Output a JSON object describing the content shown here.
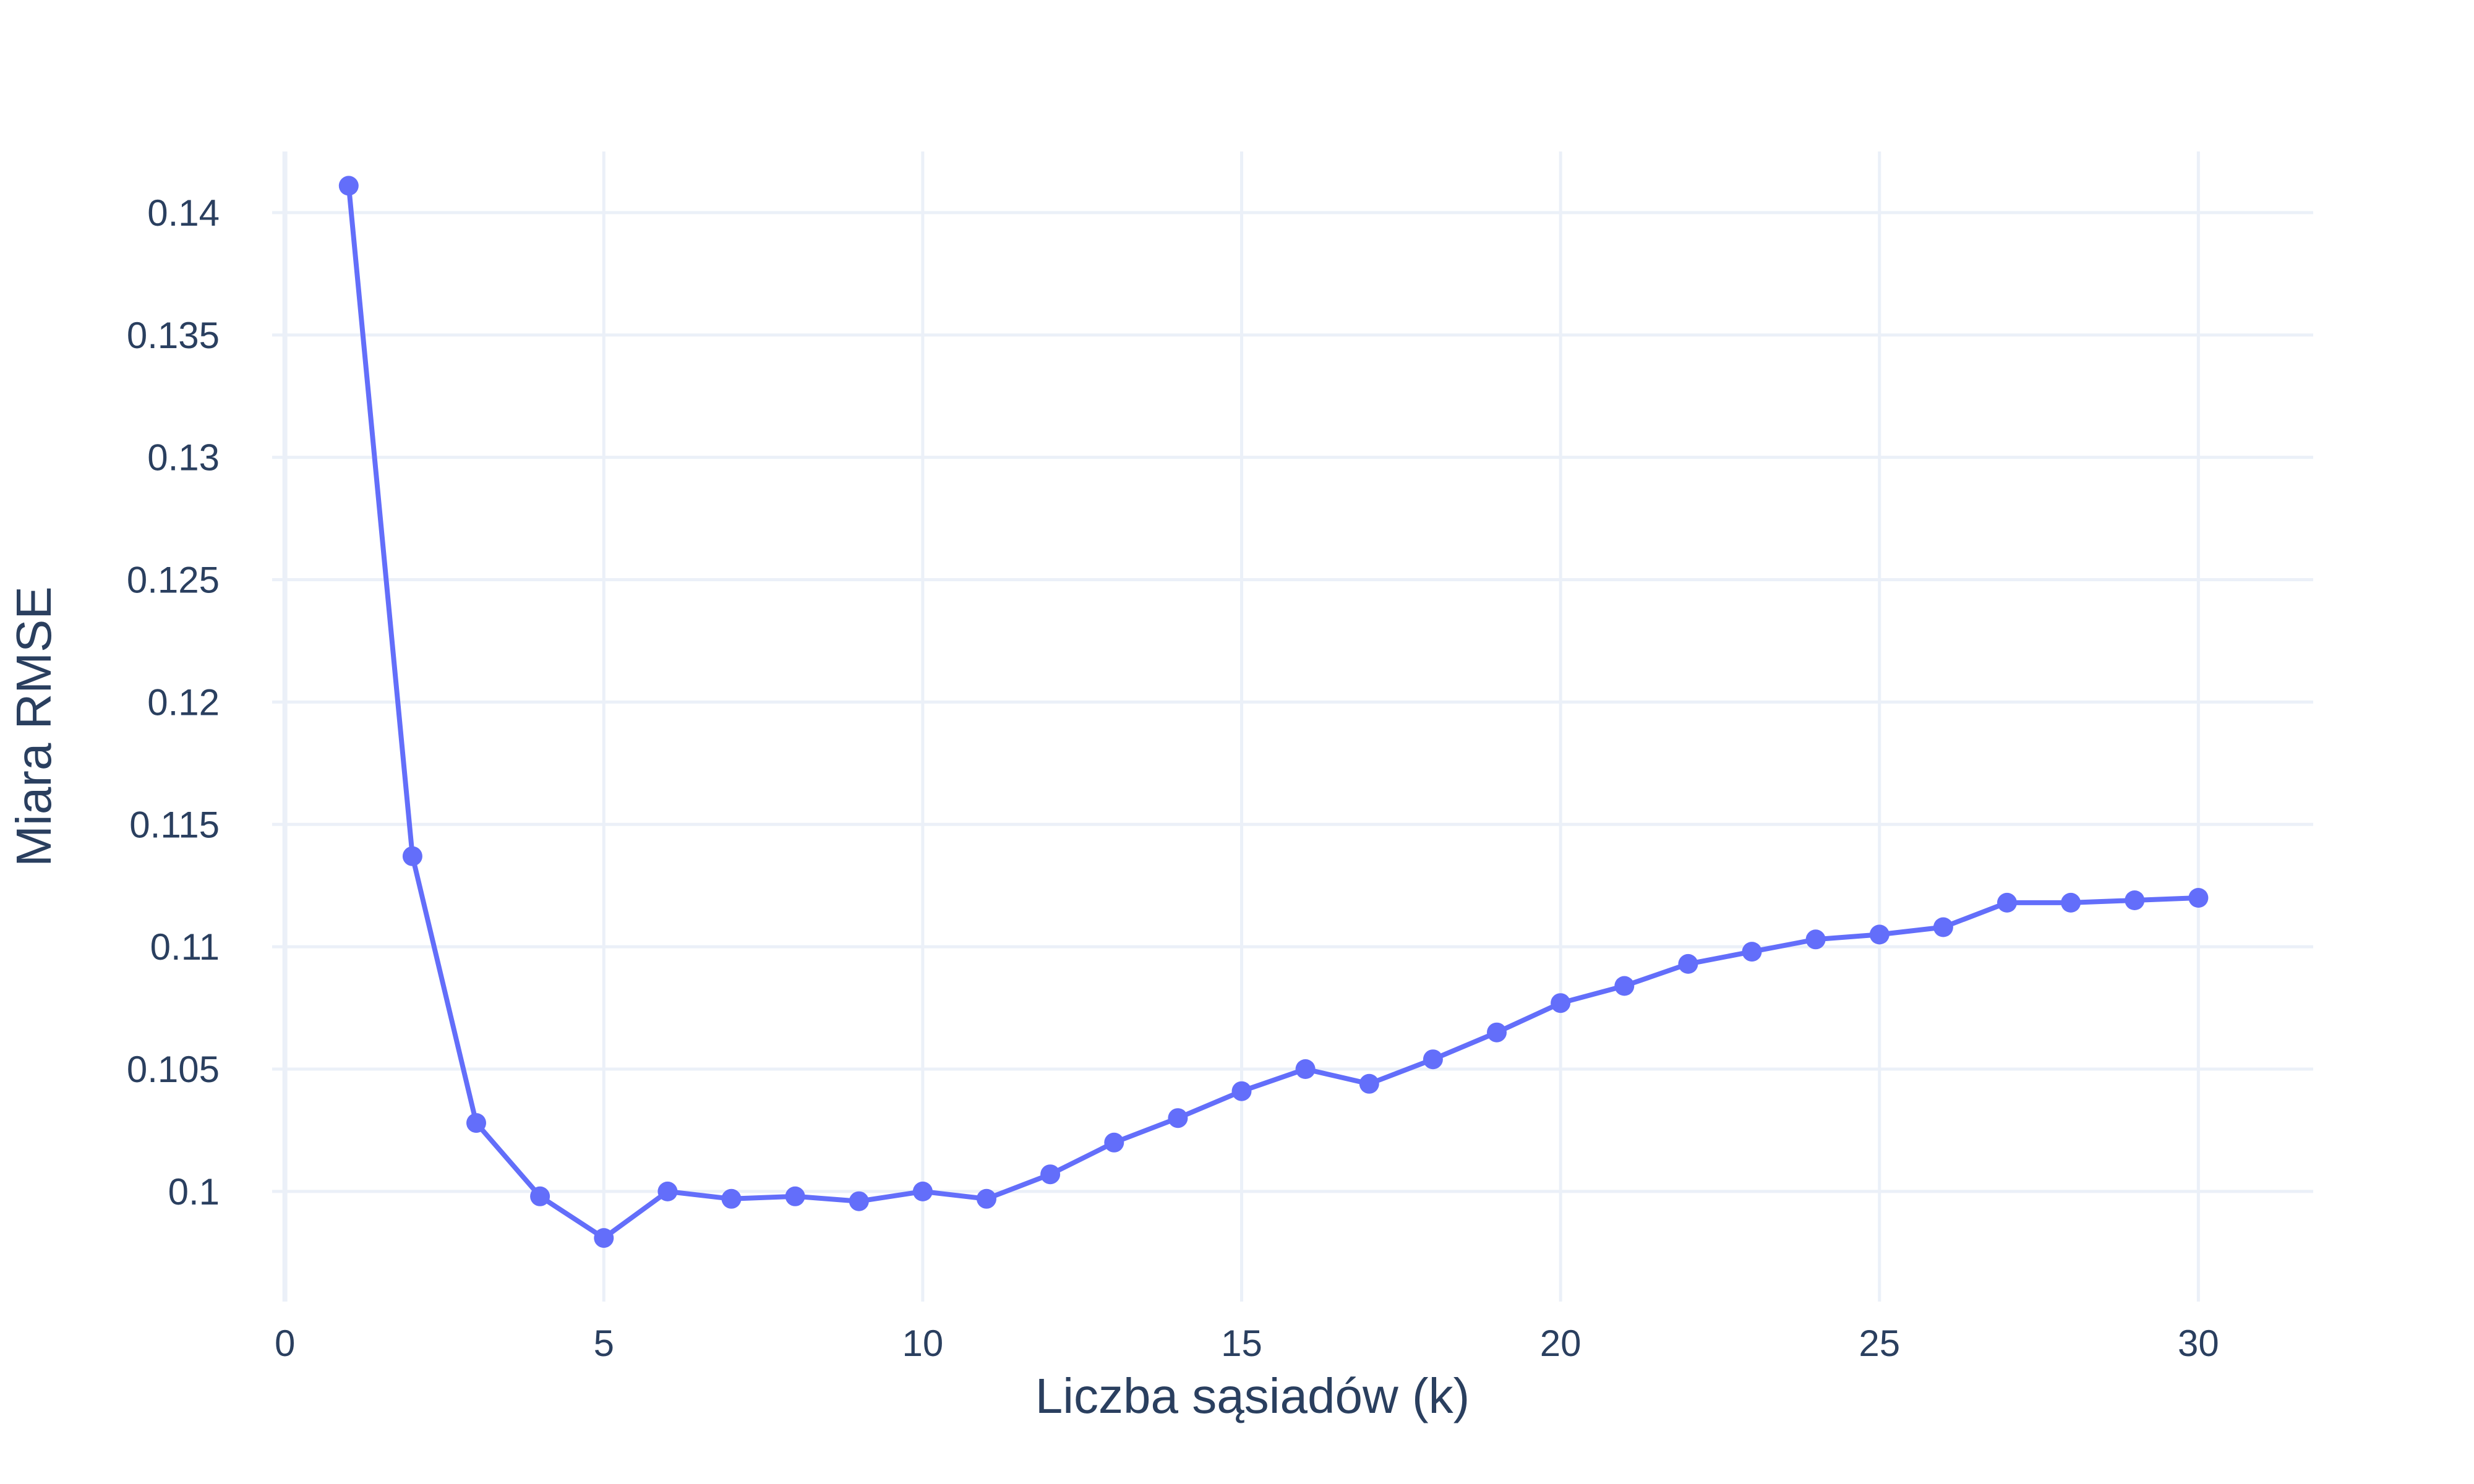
{
  "chart_data": {
    "type": "line",
    "title": "",
    "xlabel": "Liczba sąsiadów (k)",
    "ylabel": "Miara RMSE",
    "xlim": [
      -0.2,
      31.8
    ],
    "ylim": [
      0.0955,
      0.1425
    ],
    "grid": true,
    "line_color": "#636efa",
    "x_ticks": [
      0,
      5,
      10,
      15,
      20,
      25,
      30
    ],
    "x_tick_labels": [
      "0",
      "5",
      "10",
      "15",
      "20",
      "25",
      "30"
    ],
    "y_ticks": [
      0.1,
      0.105,
      0.11,
      0.115,
      0.12,
      0.125,
      0.13,
      0.135,
      0.14
    ],
    "y_tick_labels": [
      "0.1",
      "0.105",
      "0.11",
      "0.115",
      "0.12",
      "0.125",
      "0.13",
      "0.135",
      "0.14"
    ],
    "series": [
      {
        "x": [
          1,
          2,
          3,
          4,
          5,
          6,
          7,
          8,
          9,
          10,
          11,
          12,
          13,
          14,
          15,
          16,
          17,
          18,
          19,
          20,
          21,
          22,
          23,
          24,
          25,
          26,
          27,
          28,
          29,
          30
        ],
        "values": [
          0.1411,
          0.1137,
          0.1028,
          0.0998,
          0.0981,
          0.1,
          0.0997,
          0.0998,
          0.0996,
          0.1,
          0.0997,
          0.1007,
          0.102,
          0.103,
          0.1041,
          0.105,
          0.1044,
          0.1054,
          0.1065,
          0.1077,
          0.1084,
          0.1093,
          0.1098,
          0.1103,
          0.1105,
          0.1108,
          0.1118,
          0.1118,
          0.1119,
          0.112
        ]
      }
    ]
  }
}
